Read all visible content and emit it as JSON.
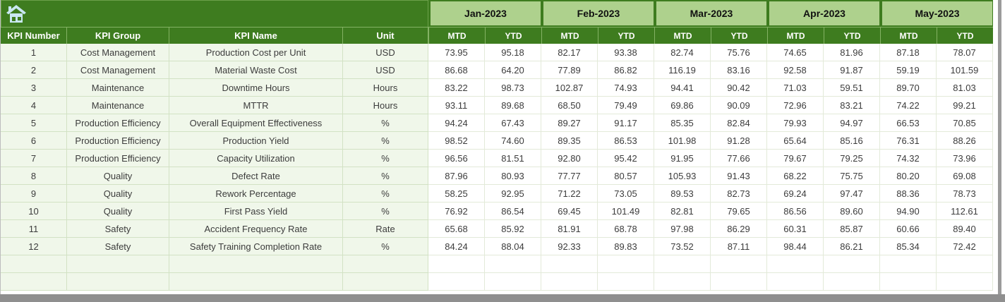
{
  "colors": {
    "dark-green": "#3e7c1f",
    "light-green": "#aed18d",
    "pale-green": "#f0f7ea",
    "icon-blue": "#c9e7f2"
  },
  "header": {
    "months": [
      "Jan-2023",
      "Feb-2023",
      "Mar-2023",
      "Apr-2023",
      "May-2023"
    ],
    "sub_headers": [
      "MTD",
      "YTD"
    ],
    "kpi_columns": [
      "KPI Number",
      "KPI Group",
      "KPI Name",
      "Unit"
    ]
  },
  "rows": [
    {
      "number": "1",
      "group": "Cost Management",
      "name": "Production Cost per Unit",
      "unit": "USD",
      "values": [
        "73.95",
        "95.18",
        "82.17",
        "93.38",
        "82.74",
        "75.76",
        "74.65",
        "81.96",
        "87.18",
        "78.07"
      ]
    },
    {
      "number": "2",
      "group": "Cost Management",
      "name": "Material Waste Cost",
      "unit": "USD",
      "values": [
        "86.68",
        "64.20",
        "77.89",
        "86.82",
        "116.19",
        "83.16",
        "92.58",
        "91.87",
        "59.19",
        "101.59"
      ]
    },
    {
      "number": "3",
      "group": "Maintenance",
      "name": "Downtime Hours",
      "unit": "Hours",
      "values": [
        "83.22",
        "98.73",
        "102.87",
        "74.93",
        "94.41",
        "90.42",
        "71.03",
        "59.51",
        "89.70",
        "81.03"
      ]
    },
    {
      "number": "4",
      "group": "Maintenance",
      "name": "MTTR",
      "unit": "Hours",
      "values": [
        "93.11",
        "89.68",
        "68.50",
        "79.49",
        "69.86",
        "90.09",
        "72.96",
        "83.21",
        "74.22",
        "99.21"
      ]
    },
    {
      "number": "5",
      "group": "Production Efficiency",
      "name": "Overall Equipment Effectiveness",
      "unit": "%",
      "values": [
        "94.24",
        "67.43",
        "89.27",
        "91.17",
        "85.35",
        "82.84",
        "79.93",
        "94.97",
        "66.53",
        "70.85"
      ]
    },
    {
      "number": "6",
      "group": "Production Efficiency",
      "name": "Production Yield",
      "unit": "%",
      "values": [
        "98.52",
        "74.60",
        "89.35",
        "86.53",
        "101.98",
        "91.28",
        "65.64",
        "85.16",
        "76.31",
        "88.26"
      ]
    },
    {
      "number": "7",
      "group": "Production Efficiency",
      "name": "Capacity Utilization",
      "unit": "%",
      "values": [
        "96.56",
        "81.51",
        "92.80",
        "95.42",
        "91.95",
        "77.66",
        "79.67",
        "79.25",
        "74.32",
        "73.96"
      ]
    },
    {
      "number": "8",
      "group": "Quality",
      "name": "Defect Rate",
      "unit": "%",
      "values": [
        "87.96",
        "80.93",
        "77.77",
        "80.57",
        "105.93",
        "91.43",
        "68.22",
        "75.75",
        "80.20",
        "69.08"
      ]
    },
    {
      "number": "9",
      "group": "Quality",
      "name": "Rework Percentage",
      "unit": "%",
      "values": [
        "58.25",
        "92.95",
        "71.22",
        "73.05",
        "89.53",
        "82.73",
        "69.24",
        "97.47",
        "88.36",
        "78.73"
      ]
    },
    {
      "number": "10",
      "group": "Quality",
      "name": "First Pass Yield",
      "unit": "%",
      "values": [
        "76.92",
        "86.54",
        "69.45",
        "101.49",
        "82.81",
        "79.65",
        "86.56",
        "89.60",
        "94.90",
        "112.61"
      ]
    },
    {
      "number": "11",
      "group": "Safety",
      "name": "Accident Frequency Rate",
      "unit": "Rate",
      "values": [
        "65.68",
        "85.92",
        "81.91",
        "68.78",
        "97.98",
        "86.29",
        "60.31",
        "85.87",
        "60.66",
        "89.40"
      ]
    },
    {
      "number": "12",
      "group": "Safety",
      "name": "Safety Training Completion Rate",
      "unit": "%",
      "values": [
        "84.24",
        "88.04",
        "92.33",
        "89.83",
        "73.52",
        "87.11",
        "98.44",
        "86.21",
        "85.34",
        "72.42"
      ]
    }
  ],
  "empty_row_count": 2
}
